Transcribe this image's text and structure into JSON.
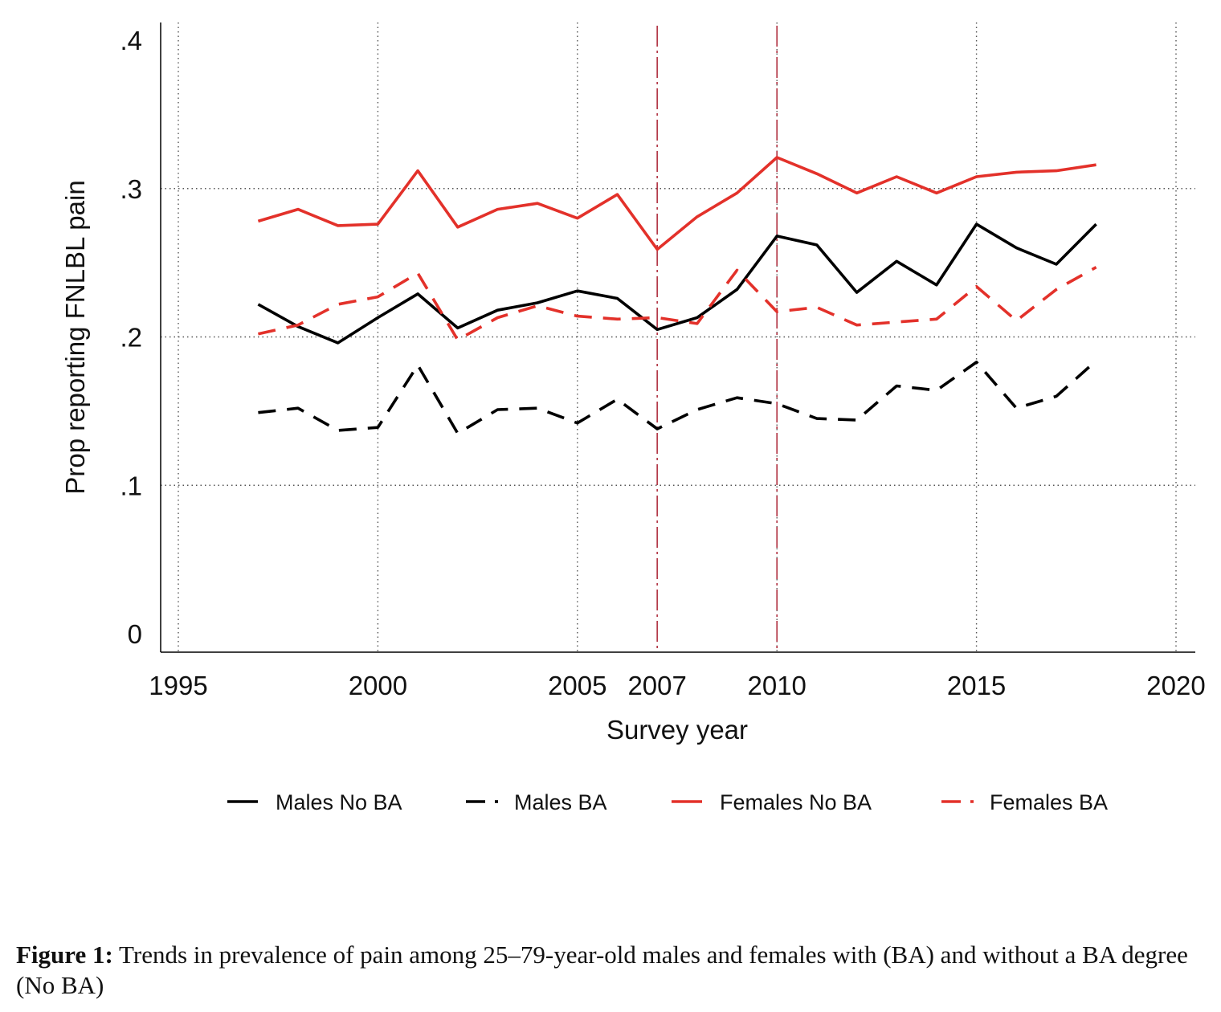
{
  "chart_data": {
    "type": "line",
    "xlabel": "Survey year",
    "ylabel": "Prop reporting FNLBL pain",
    "xlim": [
      1994.2,
      2021.0
    ],
    "ylim": [
      0,
      0.42
    ],
    "x_ticks": [
      1995,
      2000,
      2005,
      2007,
      2010,
      2015,
      2020
    ],
    "x_tick_labels": [
      "1995",
      "2000",
      "2005",
      "2007",
      "2010",
      "2015",
      "2020"
    ],
    "x_grid": [
      1995,
      2000,
      2005,
      2010,
      2015,
      2020
    ],
    "y_ticks": [
      0,
      0.1,
      0.2,
      0.3,
      0.4
    ],
    "y_tick_labels": [
      "0",
      ".1",
      ".2",
      ".3",
      ".4"
    ],
    "y_grid": [
      0.1,
      0.2,
      0.3
    ],
    "grid": true,
    "grid_style": "dotted",
    "reference_lines": [
      2007,
      2010
    ],
    "reference_line_color": "#b03040",
    "legend_position": "bottom",
    "x": [
      1997,
      1998,
      1999,
      2000,
      2001,
      2002,
      2003,
      2004,
      2005,
      2006,
      2007,
      2008,
      2009,
      2010,
      2011,
      2012,
      2013,
      2014,
      2015,
      2016,
      2017,
      2018
    ],
    "series": [
      {
        "name": "Males No BA",
        "color": "#000000",
        "dash": "solid",
        "values": [
          0.222,
          0.207,
          0.196,
          0.213,
          0.229,
          0.206,
          0.218,
          0.223,
          0.231,
          0.226,
          0.205,
          0.213,
          0.232,
          0.268,
          0.262,
          0.23,
          0.251,
          0.235,
          0.276,
          0.26,
          0.249,
          0.276
        ]
      },
      {
        "name": "Males BA",
        "color": "#000000",
        "dash": "dashed",
        "values": [
          0.149,
          0.152,
          0.137,
          0.139,
          0.181,
          0.135,
          0.151,
          0.152,
          0.142,
          0.158,
          0.138,
          0.151,
          0.159,
          0.155,
          0.145,
          0.144,
          0.167,
          0.164,
          0.183,
          0.152,
          0.16,
          0.184
        ]
      },
      {
        "name": "Females No BA",
        "color": "#e3312a",
        "dash": "solid",
        "values": [
          0.278,
          0.286,
          0.275,
          0.276,
          0.312,
          0.274,
          0.286,
          0.29,
          0.28,
          0.296,
          0.259,
          0.281,
          0.297,
          0.321,
          0.31,
          0.297,
          0.308,
          0.297,
          0.308,
          0.311,
          0.312,
          0.316
        ]
      },
      {
        "name": "Females BA",
        "color": "#e3312a",
        "dash": "dashed",
        "values": [
          0.202,
          0.208,
          0.222,
          0.227,
          0.243,
          0.198,
          0.213,
          0.221,
          0.214,
          0.212,
          0.213,
          0.209,
          0.245,
          0.217,
          0.22,
          0.208,
          0.21,
          0.212,
          0.234,
          0.211,
          0.232,
          0.247
        ]
      }
    ]
  },
  "caption": {
    "label": "Figure 1:",
    "text": " Trends in prevalence of pain among 25–79-year-old males and females with (BA) and without a BA degree (No BA)"
  }
}
